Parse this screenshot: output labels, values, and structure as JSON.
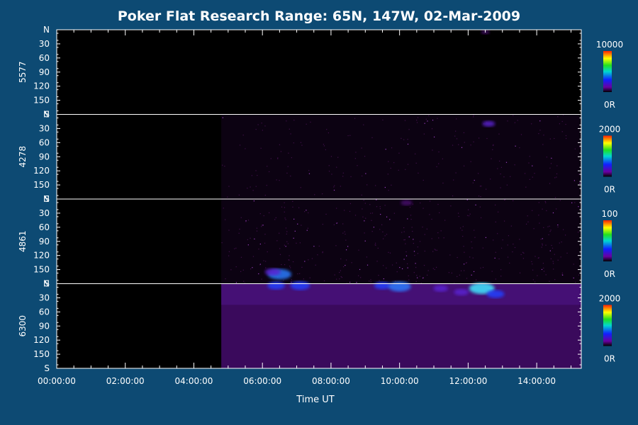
{
  "chart_data": {
    "type": "heatmap",
    "title": "Poker Flat Research Range: 65N, 147W, 02-Mar-2009",
    "xlabel": "Time UT",
    "x_ticks": [
      "00:00:00",
      "02:00:00",
      "04:00:00",
      "06:00:00",
      "08:00:00",
      "10:00:00",
      "12:00:00",
      "14:00:00"
    ],
    "x_range_hours": [
      0,
      15.3
    ],
    "y_tick_labels": [
      "N",
      "30",
      "60",
      "90",
      "120",
      "150",
      "S"
    ],
    "y_range_deg": [
      0,
      180
    ],
    "data_start_hour": 4.8,
    "panels": [
      {
        "name": "5577",
        "scale_max": "10000",
        "scale_min": "0R",
        "features": [
          {
            "t": 12.5,
            "a": 5,
            "i": 0.15
          }
        ]
      },
      {
        "name": "4278",
        "scale_max": "2000",
        "scale_min": "0R",
        "features": [
          {
            "t": 12.6,
            "a": 20,
            "i": 0.35
          }
        ]
      },
      {
        "name": "4861",
        "scale_max": "100",
        "scale_min": "0R",
        "features": [
          {
            "t": 10.2,
            "a": 8,
            "i": 0.3
          },
          {
            "t": 6.5,
            "a": 160,
            "i": 0.9
          },
          {
            "t": 6.3,
            "a": 155,
            "i": 0.5
          }
        ]
      },
      {
        "name": "6300",
        "scale_max": "2000",
        "scale_min": "0R",
        "features": [
          {
            "t": 6.4,
            "a": 4,
            "i": 0.6
          },
          {
            "t": 7.1,
            "a": 4,
            "i": 0.7
          },
          {
            "t": 9.5,
            "a": 4,
            "i": 0.55
          },
          {
            "t": 10.0,
            "a": 6,
            "i": 0.85
          },
          {
            "t": 11.2,
            "a": 10,
            "i": 0.45
          },
          {
            "t": 11.8,
            "a": 18,
            "i": 0.45
          },
          {
            "t": 12.4,
            "a": 10,
            "i": 1.0
          },
          {
            "t": 12.8,
            "a": 22,
            "i": 0.6
          }
        ]
      }
    ]
  }
}
